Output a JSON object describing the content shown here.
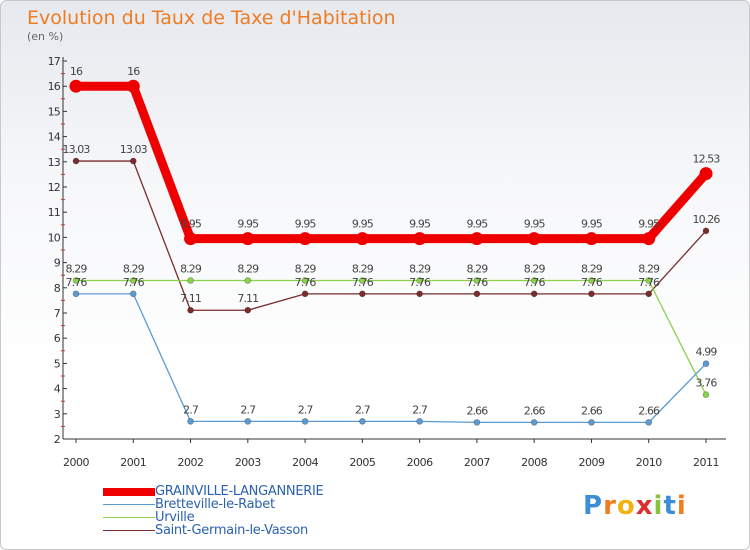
{
  "title": "Evolution du Taux de Taxe d'Habitation",
  "unit": "(en %)",
  "brand": {
    "letters": [
      "P",
      "r",
      "o",
      "x",
      "i",
      "t",
      "i"
    ],
    "colors": [
      "#3c8fd6",
      "#f07e1e",
      "#f2b311",
      "#e02d2d",
      "#8ac23c",
      "#3c8fd6",
      "#f07e1e"
    ]
  },
  "chart_data": {
    "type": "line",
    "title": "Evolution du Taux de Taxe d'Habitation",
    "ylabel": "(en %)",
    "xlabel": "",
    "ylim": [
      2,
      17
    ],
    "yticks": [
      2,
      3,
      4,
      5,
      6,
      7,
      8,
      9,
      10,
      11,
      12,
      13,
      14,
      15,
      16,
      17
    ],
    "grid": false,
    "legend_position": "bottom-left",
    "x": [
      "2000",
      "2001",
      "2002",
      "2003",
      "2004",
      "2005",
      "2006",
      "2007",
      "2008",
      "2009",
      "2010",
      "2011"
    ],
    "series": [
      {
        "name": "GRAINVILLE-LANGANNERIE",
        "color": "#ee0000",
        "values": [
          16,
          16,
          9.95,
          9.95,
          9.95,
          9.95,
          9.95,
          9.95,
          9.95,
          9.95,
          9.95,
          12.53
        ],
        "labels": [
          "16",
          "16",
          "9.95",
          "9.95",
          "9.95",
          "9.95",
          "9.95",
          "9.95",
          "9.95",
          "9.95",
          "9.95",
          "12.53"
        ]
      },
      {
        "name": "Bretteville-le-Rabet",
        "color": "#5b9bd0",
        "values": [
          7.76,
          7.76,
          2.7,
          2.7,
          2.7,
          2.7,
          2.7,
          2.66,
          2.66,
          2.66,
          2.66,
          4.99
        ],
        "labels": [
          "7.76",
          "7.76",
          "2.7",
          "2.7",
          "2.7",
          "2.7",
          "2.7",
          "2.66",
          "2.66",
          "2.66",
          "2.66",
          "4.99"
        ]
      },
      {
        "name": "Urville",
        "color": "#8bd14d",
        "values": [
          8.29,
          8.29,
          8.29,
          8.29,
          8.29,
          8.29,
          8.29,
          8.29,
          8.29,
          8.29,
          8.29,
          3.76
        ],
        "labels": [
          "8.29",
          "8.29",
          "8.29",
          "8.29",
          "8.29",
          "8.29",
          "8.29",
          "8.29",
          "8.29",
          "8.29",
          "8.29",
          "3.76"
        ]
      },
      {
        "name": "Saint-Germain-le-Vasson",
        "color": "#7a2d2d",
        "values": [
          13.03,
          13.03,
          7.11,
          7.11,
          7.76,
          7.76,
          7.76,
          7.76,
          7.76,
          7.76,
          7.76,
          10.26
        ],
        "labels": [
          "13.03",
          "13.03",
          "7.11",
          "7.11",
          "7.76",
          "7.76",
          "7.76",
          "7.76",
          "7.76",
          "7.76",
          "7.76",
          "10.26"
        ]
      }
    ]
  }
}
